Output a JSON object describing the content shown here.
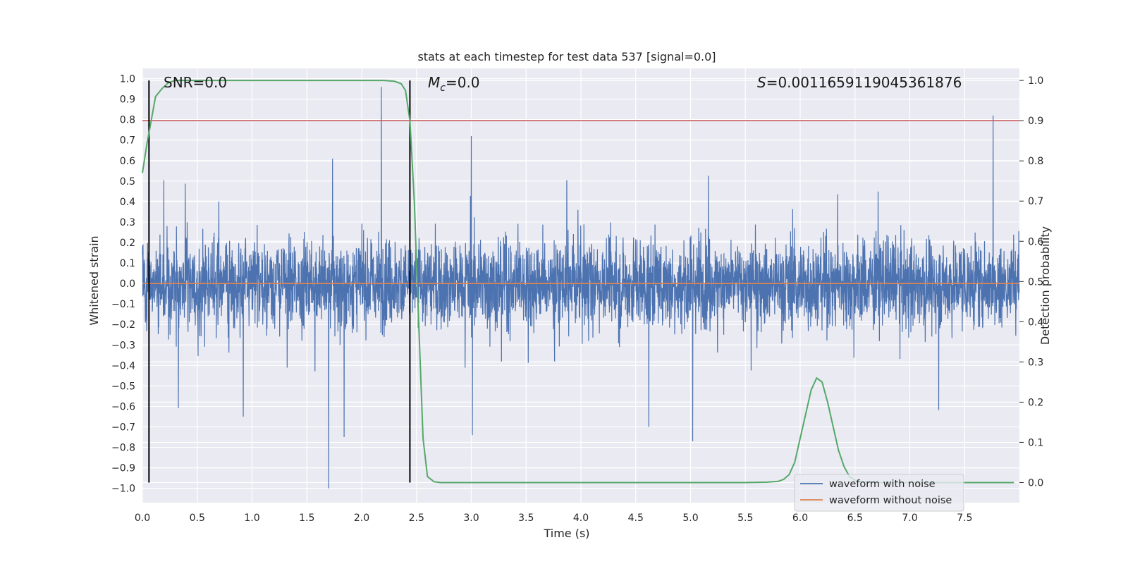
{
  "chart_data": {
    "type": "line",
    "title": "stats at each timestep for test data 537 [signal=0.0]",
    "xlabel": "Time (s)",
    "ylabel_left": "Whitened strain",
    "ylabel_right": "Detection probability",
    "xlim": [
      0.0,
      8.0
    ],
    "ylim_left": [
      -1.07,
      1.05
    ],
    "ylim_right": [
      -0.05,
      1.03
    ],
    "x_ticks": [
      "0.0",
      "0.5",
      "1.0",
      "1.5",
      "2.0",
      "2.5",
      "3.0",
      "3.5",
      "4.0",
      "4.5",
      "5.0",
      "5.5",
      "6.0",
      "6.5",
      "7.0",
      "7.5"
    ],
    "y_ticks_left": [
      "1.0",
      "0.9",
      "0.8",
      "0.7",
      "0.6",
      "0.5",
      "0.4",
      "0.3",
      "0.2",
      "0.1",
      "0.0",
      "−0.1",
      "−0.2",
      "−0.3",
      "−0.4",
      "−0.5",
      "−0.6",
      "−0.7",
      "−0.8",
      "−0.9",
      "−1.0"
    ],
    "y_ticks_right": [
      "1.0",
      "0.9",
      "0.8",
      "0.7",
      "0.6",
      "0.5",
      "0.4",
      "0.3",
      "0.2",
      "0.1",
      "0.0"
    ],
    "grid": true,
    "legend_position": "lower-right",
    "annotations": {
      "snr": "SNR=0.0",
      "mc_symbol": "M",
      "mc_sub": "c",
      "mc_value": "=0.0",
      "s_symbol": "S",
      "s_value": "=0.0011659119045361876"
    },
    "series": [
      {
        "name": "waveform with noise",
        "axis": "left",
        "color": "#4c72b0",
        "note": "dense whitened noise (~4096 samples) mostly within ±0.35, peaks: 0.96 @2.18s, 0.82 @7.76s, 0.72 @3.0s, -1.0 @1.7s, -0.75 @1.84s, -0.74 @3.01s"
      },
      {
        "name": "waveform without noise",
        "axis": "left",
        "color": "#dd8452",
        "x": [
          0.0,
          8.0
        ],
        "y": [
          0.0,
          0.0
        ]
      },
      {
        "name": "detection probability",
        "axis": "right",
        "color": "#55a868",
        "x": [
          0.0,
          0.04,
          0.08,
          0.12,
          0.18,
          0.24,
          0.3,
          0.4,
          0.6,
          1.0,
          1.5,
          2.0,
          2.2,
          2.3,
          2.36,
          2.4,
          2.44,
          2.48,
          2.52,
          2.56,
          2.6,
          2.66,
          2.72,
          2.8,
          3.0,
          4.0,
          5.0,
          5.5,
          5.7,
          5.8,
          5.85,
          5.9,
          5.95,
          6.0,
          6.05,
          6.1,
          6.15,
          6.2,
          6.25,
          6.3,
          6.35,
          6.4,
          6.45,
          6.5,
          6.55,
          6.6,
          6.7,
          6.8,
          7.0,
          7.5,
          7.95
        ],
        "y": [
          0.77,
          0.84,
          0.9,
          0.96,
          0.98,
          0.995,
          1.0,
          1.0,
          1.0,
          1.0,
          1.0,
          1.0,
          1.0,
          0.998,
          0.992,
          0.975,
          0.9,
          0.7,
          0.4,
          0.11,
          0.015,
          0.002,
          0.0,
          0.0,
          0.0,
          0.0,
          0.0,
          0.0,
          0.001,
          0.003,
          0.008,
          0.02,
          0.05,
          0.11,
          0.17,
          0.23,
          0.26,
          0.25,
          0.2,
          0.14,
          0.08,
          0.04,
          0.015,
          0.006,
          0.002,
          0.001,
          0.0,
          0.0,
          0.0,
          0.0,
          0.0
        ]
      }
    ],
    "reference_lines": {
      "threshold_right_axis": 0.9,
      "threshold_color": "#c44e52",
      "vertical_markers_s": [
        0.06,
        2.44
      ],
      "vertical_marker_color": "#000000",
      "vertical_marker_span_right": [
        0.0,
        1.0
      ]
    }
  },
  "legend": {
    "items": [
      {
        "label": "waveform with noise",
        "color": "#4c72b0"
      },
      {
        "label": "waveform without noise",
        "color": "#dd8452"
      }
    ]
  }
}
